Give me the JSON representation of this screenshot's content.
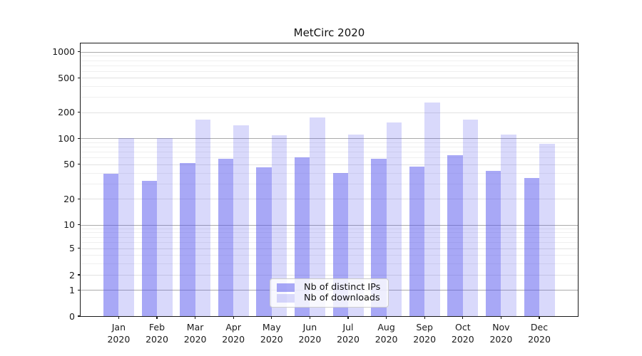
{
  "title": "MetCirc 2020",
  "chart_data": {
    "type": "bar",
    "title": "MetCirc 2020",
    "xlabel": "",
    "ylabel": "",
    "yscale": "symlog",
    "ylim": [
      0,
      1250
    ],
    "grid": true,
    "legend_position": "lower center",
    "yticks": [
      0,
      1,
      2,
      5,
      10,
      20,
      50,
      100,
      200,
      500,
      1000
    ],
    "ytick_labels": [
      "0",
      "1",
      "2",
      "5",
      "10",
      "20",
      "50",
      "100",
      "200",
      "500",
      "1000"
    ],
    "categories": [
      "Jan 2020",
      "Feb 2020",
      "Mar 2020",
      "Apr 2020",
      "May 2020",
      "Jun 2020",
      "Jul 2020",
      "Aug 2020",
      "Sep 2020",
      "Oct 2020",
      "Nov 2020",
      "Dec 2020"
    ],
    "series": [
      {
        "name": "Nb of distinct IPs",
        "values": [
          39,
          32,
          52,
          58,
          46,
          60,
          40,
          58,
          47,
          64,
          42,
          35
        ],
        "color_hex": "#a8a8f6",
        "fill": "rgba(82,82,238,0.5)"
      },
      {
        "name": "Nb of downloads",
        "values": [
          101,
          101,
          164,
          142,
          108,
          174,
          110,
          152,
          261,
          164,
          110,
          86
        ],
        "color_hex": "#d8d8f9",
        "fill": "rgba(82,82,238,0.22)"
      }
    ],
    "colors": {
      "gridline_major": "#ababab",
      "gridline_minor": "#efefef",
      "axis": "#1a1a1a",
      "legend_border": "#cccccc"
    }
  }
}
